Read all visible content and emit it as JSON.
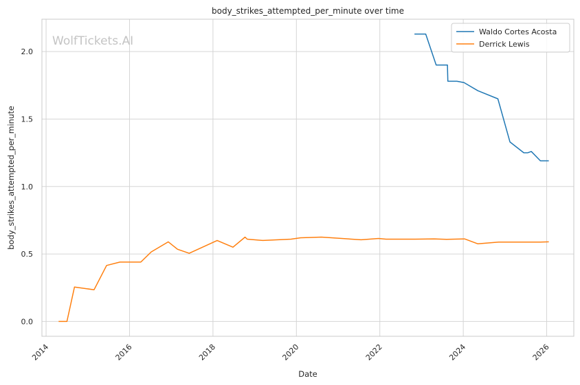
{
  "chart_data": {
    "type": "line",
    "title": "body_strikes_attempted_per_minute over time",
    "xlabel": "Date",
    "ylabel": "body_strikes_attempted_per_minute",
    "watermark": "WolfTickets.AI",
    "xlim": [
      2013.9,
      2026.65
    ],
    "ylim": [
      -0.11,
      2.24
    ],
    "x_ticks": [
      2014,
      2016,
      2018,
      2020,
      2022,
      2024,
      2026
    ],
    "x_tick_labels": [
      "2014",
      "2016",
      "2018",
      "2020",
      "2022",
      "2024",
      "2026"
    ],
    "y_ticks": [
      0.0,
      0.5,
      1.0,
      1.5,
      2.0
    ],
    "y_tick_labels": [
      "0.0",
      "0.5",
      "1.0",
      "1.5",
      "2.0"
    ],
    "grid": true,
    "legend_position": "top-right",
    "series": [
      {
        "name": "Waldo Cortes Acosta",
        "color": "#1f77b4",
        "x": [
          2022.83,
          2023.1,
          2023.35,
          2023.62,
          2023.63,
          2023.85,
          2024.02,
          2024.35,
          2024.83,
          2025.12,
          2025.45,
          2025.55,
          2025.63,
          2025.85,
          2026.05
        ],
        "y": [
          2.13,
          2.13,
          1.9,
          1.9,
          1.78,
          1.78,
          1.77,
          1.71,
          1.65,
          1.33,
          1.25,
          1.25,
          1.26,
          1.19,
          1.19
        ]
      },
      {
        "name": "Derrick Lewis",
        "color": "#ff7f0e",
        "x": [
          2014.3,
          2014.5,
          2014.68,
          2015.15,
          2015.45,
          2015.77,
          2016.27,
          2016.52,
          2016.93,
          2017.15,
          2017.43,
          2018.1,
          2018.48,
          2018.77,
          2018.82,
          2019.2,
          2019.87,
          2020.1,
          2020.6,
          2021.55,
          2021.97,
          2022.15,
          2022.85,
          2023.3,
          2023.6,
          2024.03,
          2024.35,
          2024.85,
          2025.48,
          2025.85,
          2026.05
        ],
        "y": [
          0.0,
          0.0,
          0.255,
          0.235,
          0.415,
          0.44,
          0.44,
          0.515,
          0.59,
          0.535,
          0.505,
          0.6,
          0.55,
          0.625,
          0.61,
          0.6,
          0.61,
          0.62,
          0.625,
          0.605,
          0.615,
          0.61,
          0.61,
          0.612,
          0.608,
          0.612,
          0.575,
          0.588,
          0.588,
          0.588,
          0.59
        ]
      }
    ]
  }
}
